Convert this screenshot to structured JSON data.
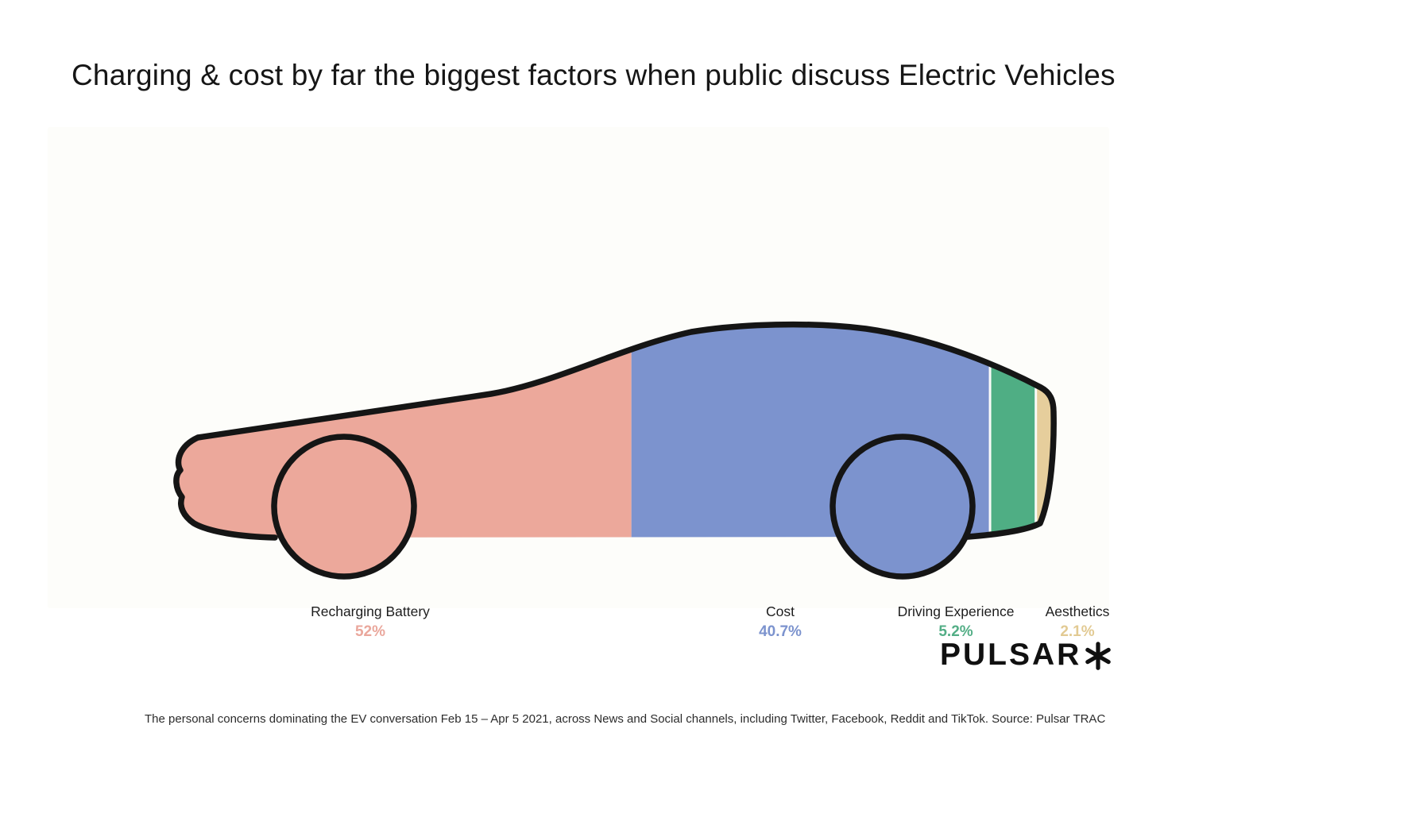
{
  "page": {
    "title": "Charging & cost by far the biggest factors when public discuss Electric Vehicles",
    "caption": "The personal concerns dominating the EV conversation Feb 15 – Apr 5 2021, across News and Social channels, including Twitter, Facebook, Reddit and TikTok. Source: Pulsar TRAC",
    "logo": {
      "text": "PULSAR",
      "mark_icon": "asterisk-icon"
    }
  },
  "chart_data": {
    "type": "bar",
    "variant": "stacked-percentage-car-silhouette",
    "title": "Charging & cost by far the biggest factors when public discuss Electric Vehicles",
    "categories": [
      "Recharging Battery",
      "Cost",
      "Driving Experience",
      "Aesthetics"
    ],
    "values": [
      52,
      40.7,
      5.2,
      2.1
    ],
    "series": [
      {
        "name": "Recharging Battery",
        "value": 52,
        "pct_label": "52%",
        "color": "#ECA89B",
        "label_color": "#EAA79C"
      },
      {
        "name": "Cost",
        "value": 40.7,
        "pct_label": "40.7%",
        "color": "#7C93CE",
        "label_color": "#7C93CE"
      },
      {
        "name": "Driving Experience",
        "value": 5.2,
        "pct_label": "5.2%",
        "color": "#4FAE84",
        "label_color": "#53AE86"
      },
      {
        "name": "Aesthetics",
        "value": 2.1,
        "pct_label": "2.1%",
        "color": "#E6CE9C",
        "label_color": "#E2CA93"
      }
    ],
    "outline_color": "#151515",
    "legend_position": "below",
    "footnote": "The personal concerns dominating the EV conversation Feb 15 – Apr 5 2021, across News and Social channels, including Twitter, Facebook, Reddit and TikTok. Source: Pulsar TRAC",
    "source": "Pulsar TRAC"
  }
}
